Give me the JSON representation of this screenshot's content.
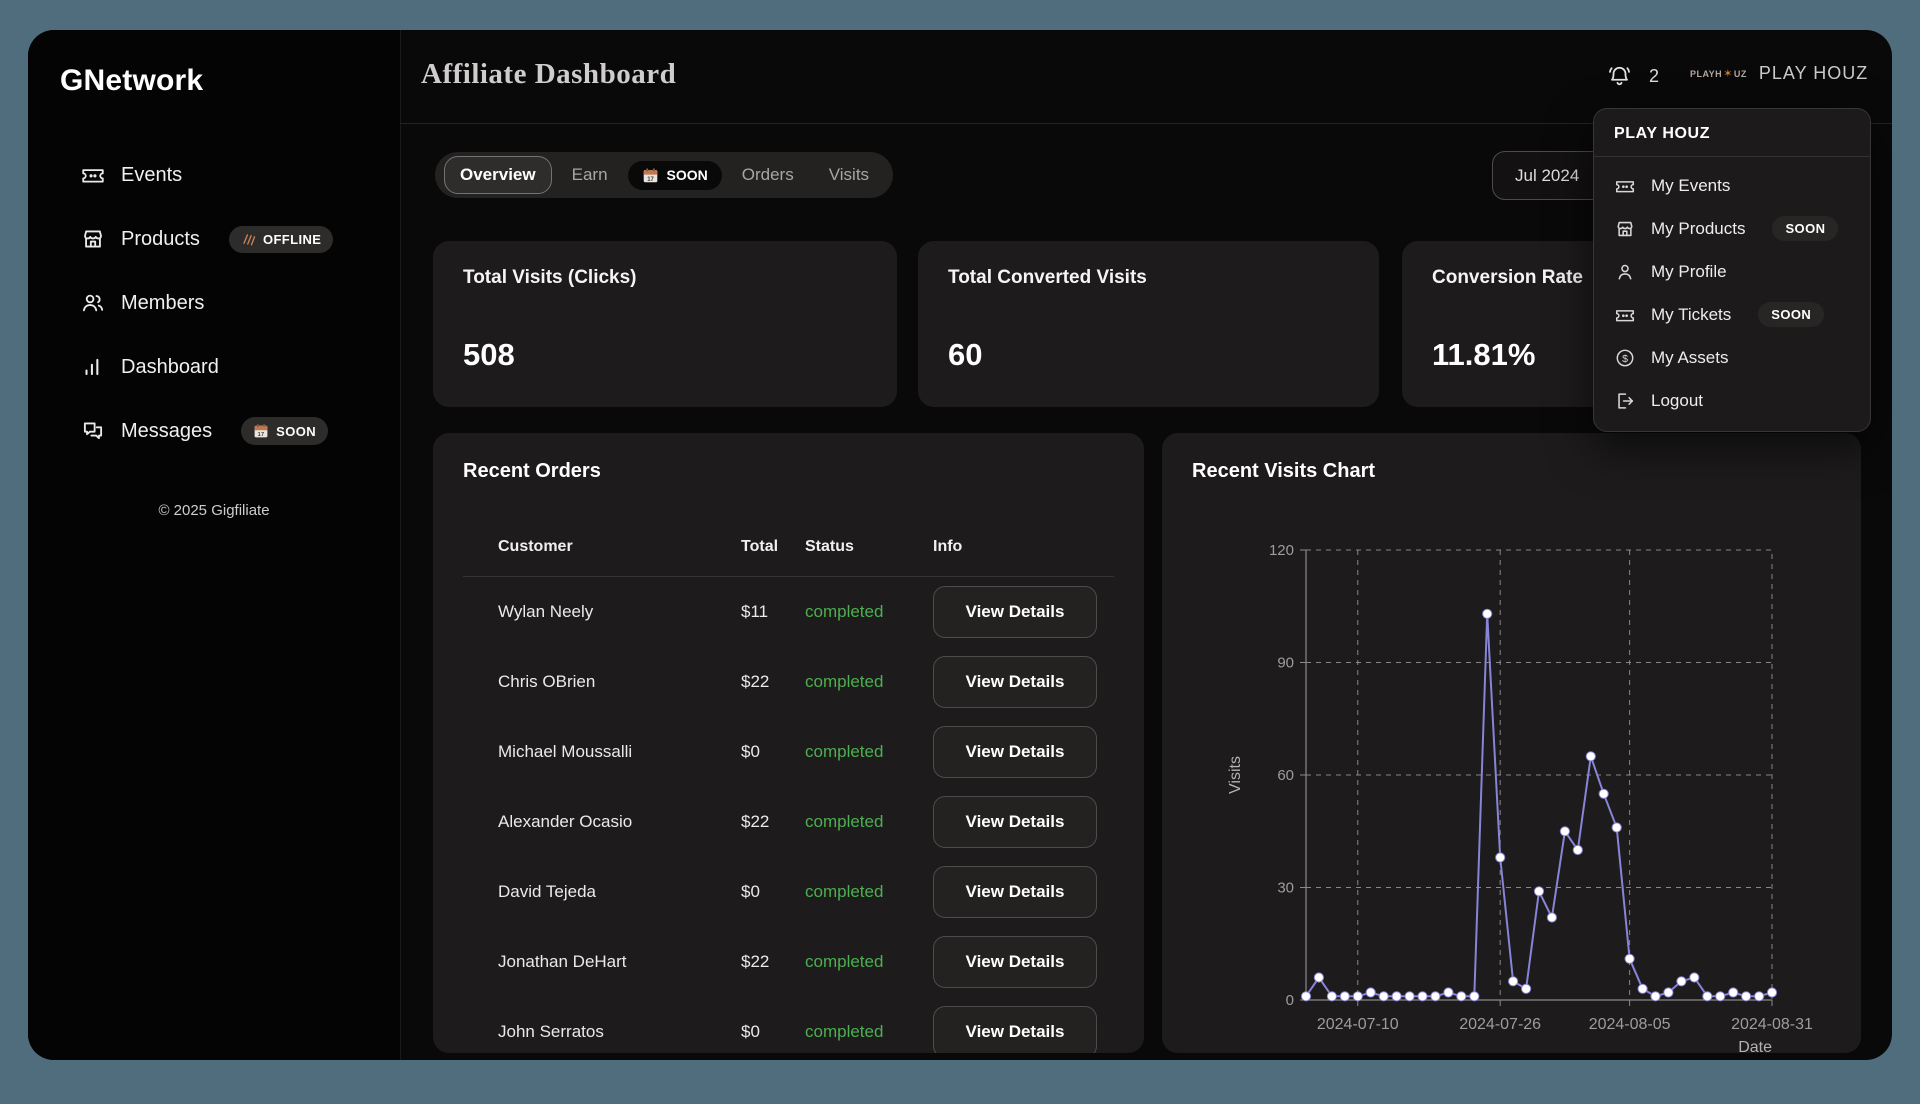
{
  "colors": {
    "page_bg": "#4f6d7c",
    "app_bg": "#0a0909",
    "card_bg": "#1d1b1b",
    "accent_line": "#8884d8",
    "status_green": "#4caf50",
    "badge_orange": "#c0784f"
  },
  "sidebar": {
    "logo": "GNetwork",
    "items": [
      {
        "label": "Events"
      },
      {
        "label": "Products",
        "badge": "OFFLINE"
      },
      {
        "label": "Members"
      },
      {
        "label": "Dashboard"
      },
      {
        "label": "Messages",
        "badge": "SOON"
      }
    ],
    "copyright": "© 2025 Gigfiliate"
  },
  "header": {
    "title": "Affiliate Dashboard",
    "notification_count": "2",
    "logo_text_left": "PLAYH",
    "logo_mark": "✶",
    "logo_text_right": "UZ",
    "account_name": "PLAY HOUZ"
  },
  "tabs": {
    "items": [
      "Overview",
      "Earn",
      "Orders",
      "Visits"
    ],
    "active": "Overview",
    "soon_badge": "SOON"
  },
  "date_filter": {
    "value": "Jul 2024"
  },
  "stats": [
    {
      "label": "Total Visits (Clicks)",
      "value": "508"
    },
    {
      "label": "Total Converted Visits",
      "value": "60"
    },
    {
      "label": "Conversion Rate",
      "value": "11.81%"
    }
  ],
  "orders": {
    "title": "Recent Orders",
    "columns": {
      "customer": "Customer",
      "total": "Total",
      "status": "Status",
      "info": "Info"
    },
    "action_label": "View Details",
    "rows": [
      {
        "customer": "Wylan Neely",
        "total": "$11",
        "status": "completed"
      },
      {
        "customer": "Chris OBrien",
        "total": "$22",
        "status": "completed"
      },
      {
        "customer": "Michael Moussalli",
        "total": "$0",
        "status": "completed"
      },
      {
        "customer": "Alexander Ocasio",
        "total": "$22",
        "status": "completed"
      },
      {
        "customer": "David Tejeda",
        "total": "$0",
        "status": "completed"
      },
      {
        "customer": "Jonathan DeHart",
        "total": "$22",
        "status": "completed"
      },
      {
        "customer": "John Serratos",
        "total": "$0",
        "status": "completed"
      }
    ]
  },
  "chart_data": {
    "type": "line",
    "title": "Recent Visits Chart",
    "xlabel": "Date",
    "ylabel": "Visits",
    "ylim": [
      0,
      120
    ],
    "yticks": [
      0,
      30,
      60,
      90,
      120
    ],
    "xticks": [
      {
        "index": 4,
        "label": "2024-07-10"
      },
      {
        "index": 15,
        "label": "2024-07-26"
      },
      {
        "index": 25,
        "label": "2024-08-05"
      },
      {
        "index": 36,
        "label": "2024-08-31"
      }
    ],
    "values": [
      1,
      6,
      1,
      1,
      1,
      2,
      1,
      1,
      1,
      1,
      1,
      2,
      1,
      1,
      103,
      38,
      5,
      3,
      29,
      22,
      45,
      40,
      65,
      55,
      46,
      11,
      3,
      1,
      2,
      5,
      6,
      1,
      1,
      2,
      1,
      1,
      2
    ],
    "grid": true,
    "legend": false,
    "line_color": "#8884d8",
    "dot_fill": "#ffffff"
  },
  "menu": {
    "title": "PLAY HOUZ",
    "items": [
      {
        "label": "My Events"
      },
      {
        "label": "My Products",
        "badge": "SOON"
      },
      {
        "label": "My Profile"
      },
      {
        "label": "My Tickets",
        "badge": "SOON"
      },
      {
        "label": "My Assets"
      },
      {
        "label": "Logout"
      }
    ]
  }
}
